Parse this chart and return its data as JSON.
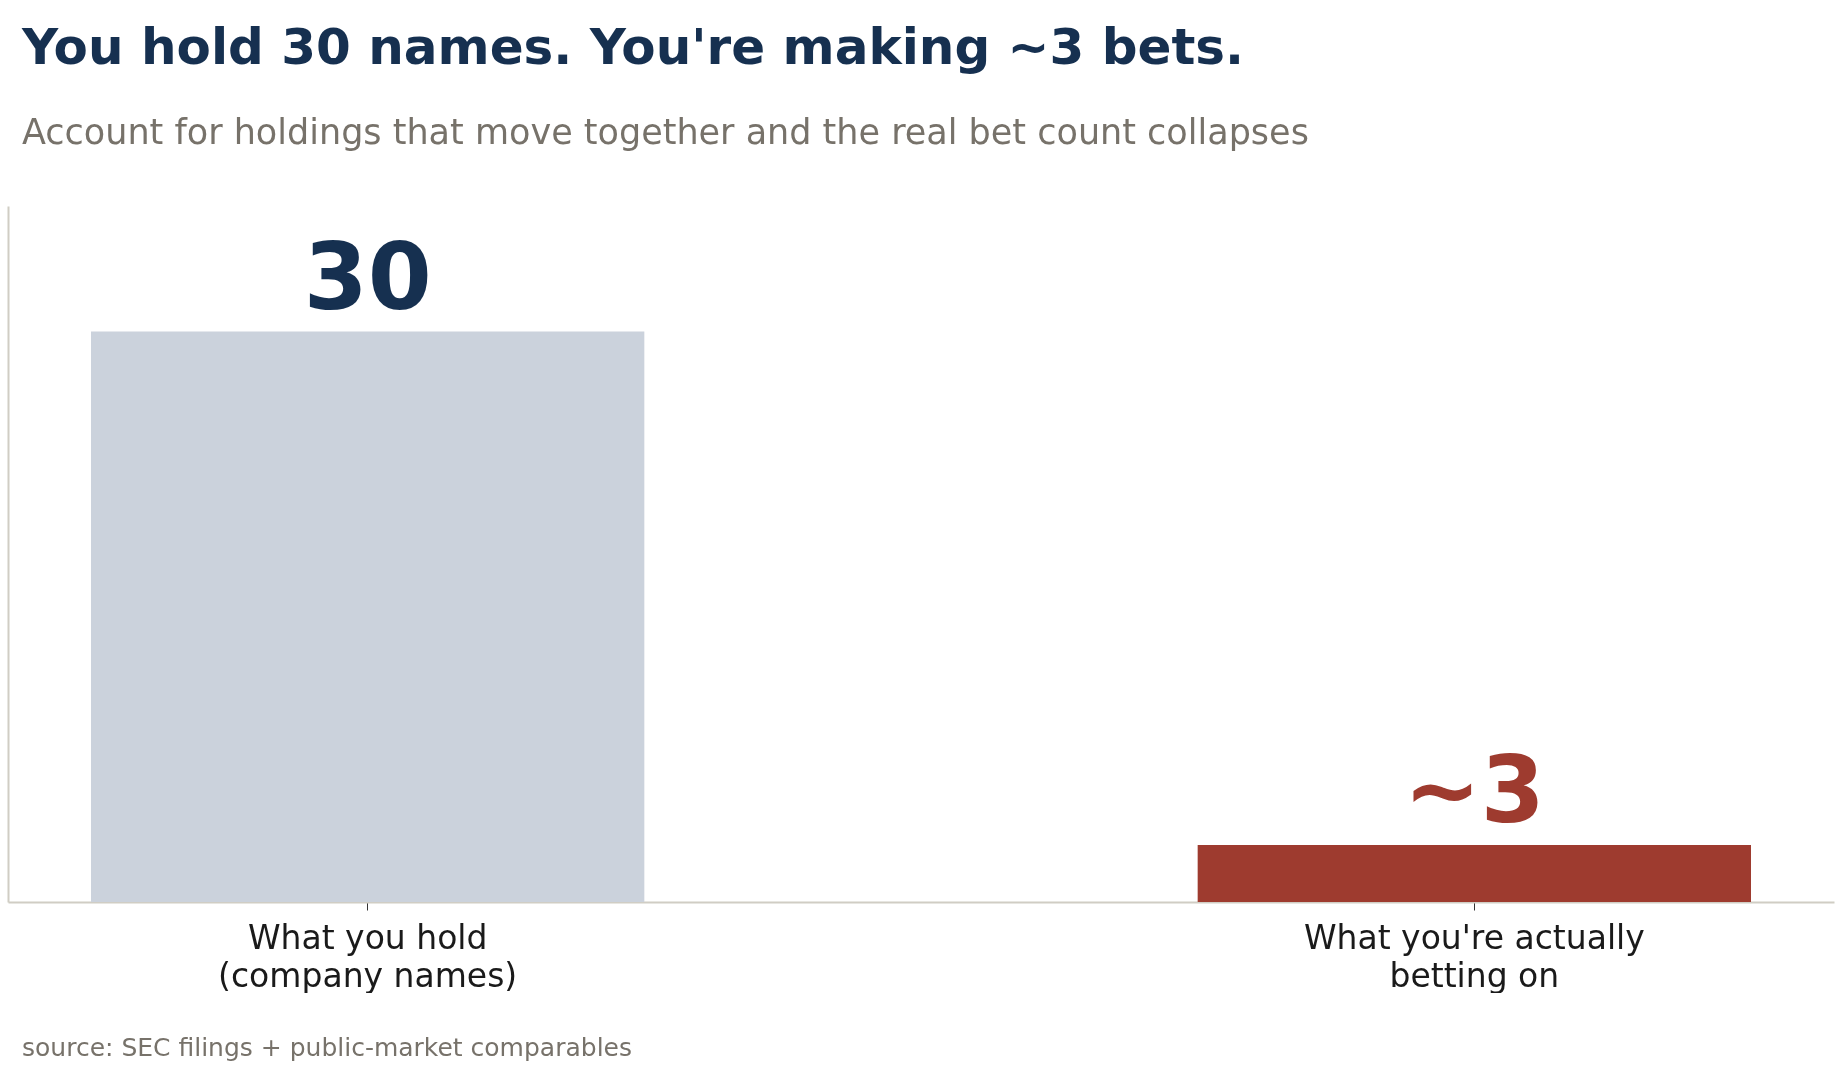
{
  "chart_data": {
    "type": "bar",
    "title": "You hold 30 names. You're making ~3 bets.",
    "subtitle": "Account for holdings that move together and the real bet count collapses",
    "categories": [
      "What you hold\n(company names)",
      "What you're actually\nbetting on"
    ],
    "values": [
      30,
      3
    ],
    "colors": [
      "#cbd2dc",
      "#9e3b2f"
    ],
    "value_labels": [
      "30",
      "~3"
    ],
    "annotations": [
      "source: SEC filings + public-market comparables"
    ],
    "grid": false
  }
}
